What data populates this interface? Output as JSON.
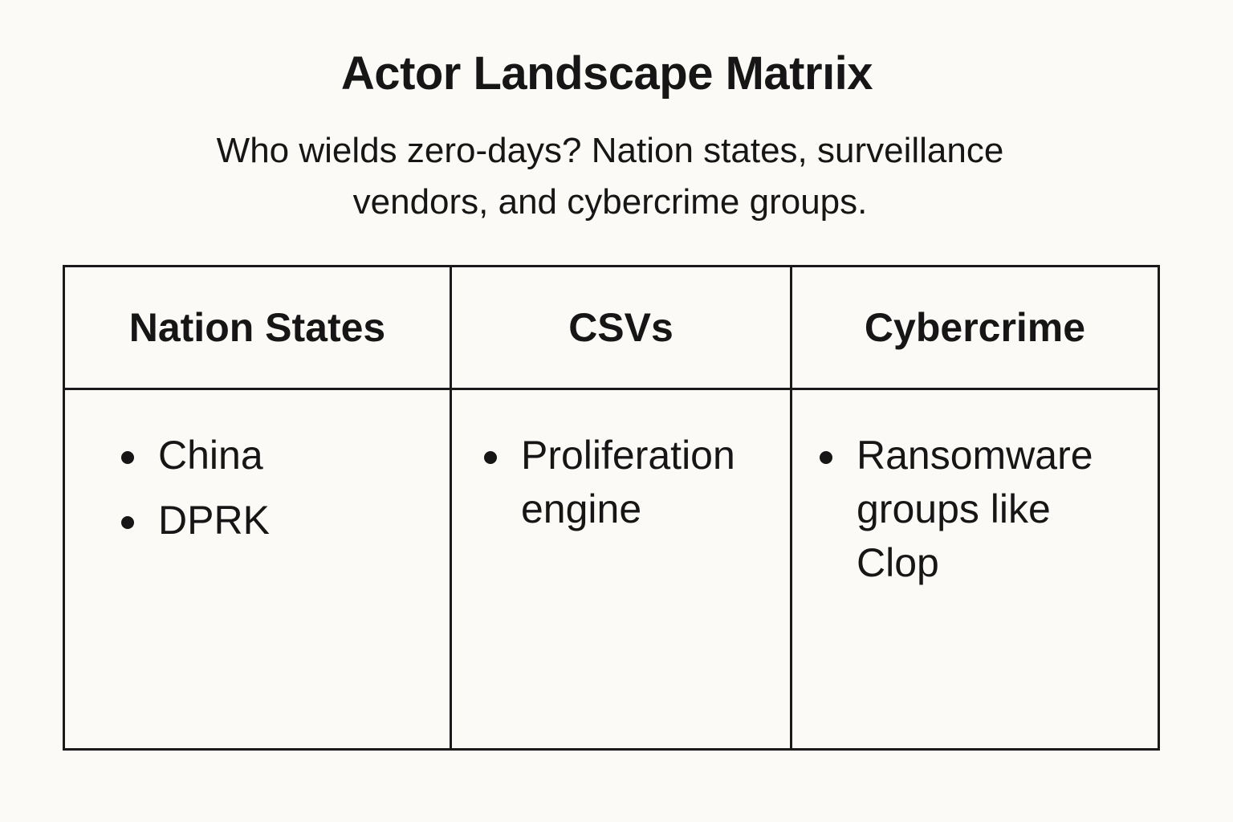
{
  "title": "Actor Landscape Matrıix",
  "subtitle": "Who wields zero-days? Nation states, surveillance vendors, and cybercrime groups.",
  "columns": [
    {
      "header": "Nation States",
      "items": [
        "China",
        "DPRK"
      ]
    },
    {
      "header": "CSVs",
      "items": [
        "Proliferation engine"
      ]
    },
    {
      "header": "Cybercrime",
      "items": [
        "Ransomware groups like Clop"
      ]
    }
  ]
}
